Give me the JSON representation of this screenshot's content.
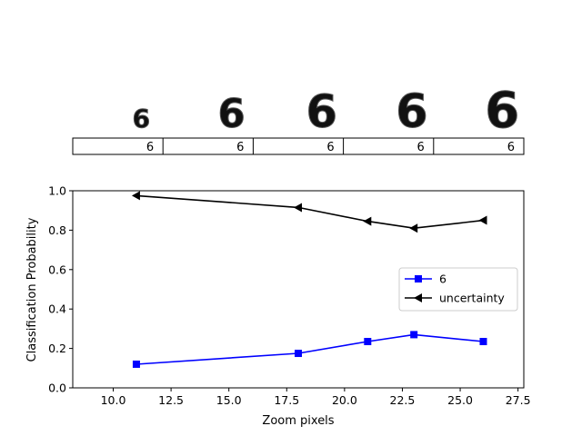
{
  "digit_strip": {
    "labels": [
      "6",
      "6",
      "6",
      "6",
      "6"
    ],
    "digit_scales": [
      0.45,
      0.7,
      0.8,
      0.82,
      0.88
    ]
  },
  "chart_data": {
    "type": "line",
    "xlabel": "Zoom pixels",
    "ylabel": "Classification Probability",
    "xlim": [
      8.25,
      27.75
    ],
    "ylim": [
      0,
      1
    ],
    "xticks": [
      "10.0",
      "12.5",
      "15.0",
      "17.5",
      "20.0",
      "22.5",
      "25.0",
      "27.5"
    ],
    "yticks": [
      "0.0",
      "0.2",
      "0.4",
      "0.6",
      "0.8",
      "1.0"
    ],
    "grid": false,
    "legend_position": "center-right",
    "x": [
      11,
      18,
      21,
      23,
      26
    ],
    "series": [
      {
        "name": "6",
        "values": [
          0.12,
          0.175,
          0.235,
          0.27,
          0.235
        ],
        "color": "#0000ff",
        "marker": "square"
      },
      {
        "name": "uncertainty",
        "values": [
          0.975,
          0.915,
          0.845,
          0.81,
          0.85
        ],
        "color": "#000000",
        "marker": "triangle-left"
      }
    ]
  }
}
